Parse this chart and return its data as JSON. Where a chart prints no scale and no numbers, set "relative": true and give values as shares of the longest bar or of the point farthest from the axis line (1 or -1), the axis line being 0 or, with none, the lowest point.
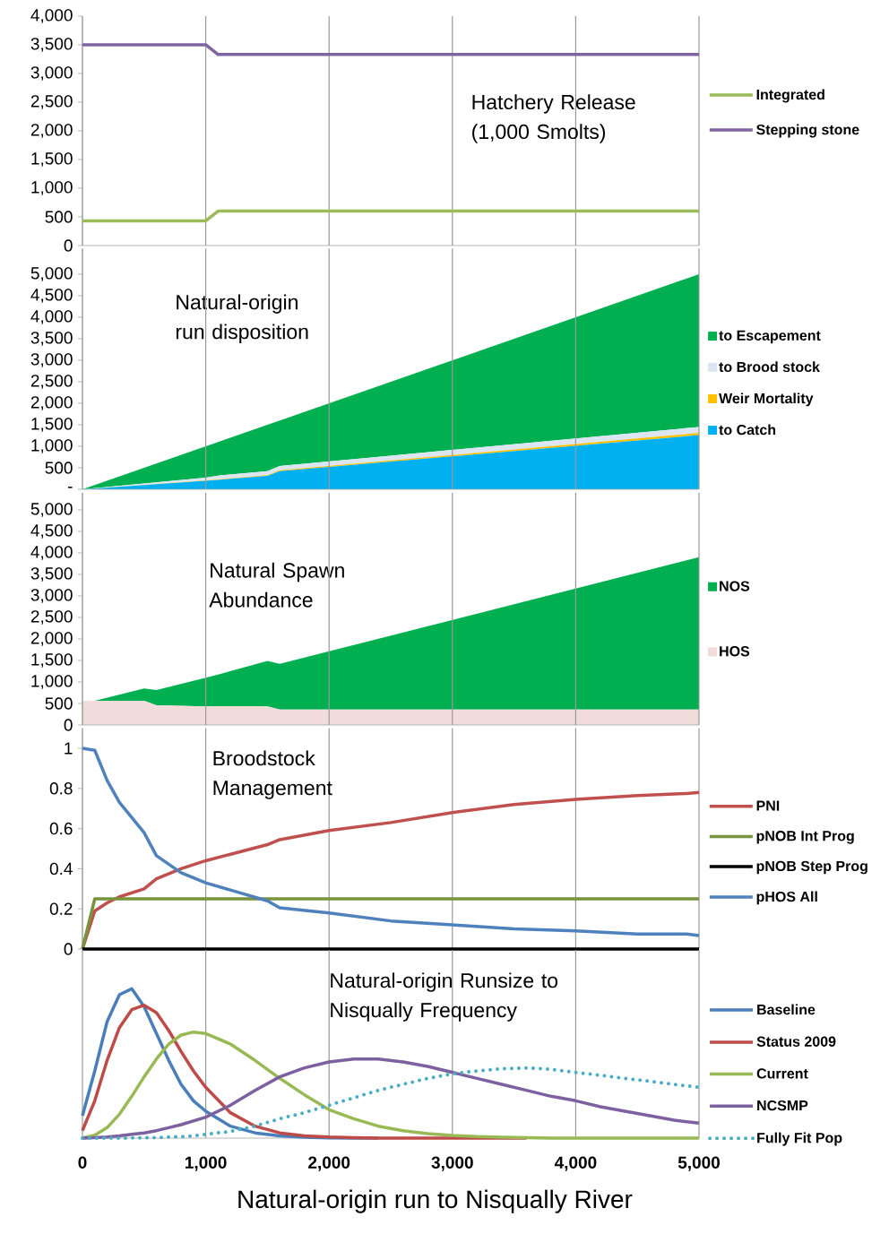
{
  "chart_data": [
    {
      "type": "line",
      "title": "Hatchery Release (1,000 Smolts)",
      "x": [
        0,
        1000,
        1100,
        5000
      ],
      "xlim": [
        0,
        5000
      ],
      "ylim": [
        0,
        4000
      ],
      "xticks": [
        0,
        1000,
        2000,
        3000,
        4000,
        5000
      ],
      "yticks": [
        0,
        500,
        {
          "value": 1000,
          "label": "1,000"
        },
        {
          "value": 1500,
          "label": "1,500"
        },
        {
          "value": 2000,
          "label": "2,000"
        },
        {
          "value": 2500,
          "label": "2,500"
        },
        {
          "value": 3000,
          "label": "3,000"
        },
        {
          "value": 3500,
          "label": "3,500"
        },
        {
          "value": 4000,
          "label": "4,000"
        }
      ],
      "series": [
        {
          "name": "Integrated",
          "color": "#9bbb59",
          "values": [
            430,
            430,
            600,
            600
          ]
        },
        {
          "name": "Stepping stone",
          "color": "#8064a2",
          "values": [
            3500,
            3500,
            3330,
            3330
          ]
        }
      ],
      "grid": "x",
      "legend": "right",
      "tick_labels": "y",
      "marker": "none",
      "line_style": "solid"
    },
    {
      "type": "area",
      "stacked": true,
      "title": "Natural-origin run disposition",
      "x": [
        0,
        1000,
        1100,
        1500,
        1600,
        5000
      ],
      "xlim": [
        0,
        5000
      ],
      "ylim": [
        0,
        5600
      ],
      "xticks": [
        0,
        1000,
        2000,
        3000,
        4000,
        5000
      ],
      "yticks": [
        {
          "value": 0,
          "label": "-"
        },
        500,
        {
          "value": 1000,
          "label": "1,000"
        },
        {
          "value": 1500,
          "label": "1,500"
        },
        {
          "value": 2000,
          "label": "2,000"
        },
        {
          "value": 2500,
          "label": "2,500"
        },
        {
          "value": 3000,
          "label": "3,000"
        },
        {
          "value": 3500,
          "label": "3,500"
        },
        {
          "value": 4000,
          "label": "4,000"
        },
        {
          "value": 4500,
          "label": "4,500"
        },
        {
          "value": 5000,
          "label": "5,000"
        }
      ],
      "series": [
        {
          "name": "to Catch",
          "color": "#00b0f0",
          "values": [
            0,
            200,
            220,
            310,
            420,
            1260
          ]
        },
        {
          "name": "Weir Mortality",
          "color": "#ffc000",
          "values": [
            0,
            10,
            10,
            20,
            20,
            50
          ]
        },
        {
          "name": "to Brood stock",
          "color": "#dce6f2",
          "values": [
            0,
            60,
            90,
            90,
            100,
            140
          ]
        },
        {
          "name": "to Escapement",
          "color": "#00b050",
          "values": [
            0,
            730,
            780,
            1080,
            1060,
            3550
          ]
        }
      ],
      "grid": "x",
      "legend": "right",
      "tick_labels": "y"
    },
    {
      "type": "area",
      "stacked": true,
      "title": "Natural Spawn Abundance",
      "x": [
        0,
        100,
        500,
        600,
        1000,
        1100,
        1500,
        1600,
        5000
      ],
      "xlim": [
        0,
        5000
      ],
      "ylim": [
        0,
        5400
      ],
      "xticks": [
        0,
        1000,
        2000,
        3000,
        4000,
        5000
      ],
      "yticks": [
        0,
        500,
        {
          "value": 1000,
          "label": "1,000"
        },
        {
          "value": 1500,
          "label": "1,500"
        },
        {
          "value": 2000,
          "label": "2,000"
        },
        {
          "value": 2500,
          "label": "2,500"
        },
        {
          "value": 3000,
          "label": "3,000"
        },
        {
          "value": 3500,
          "label": "3,500"
        },
        {
          "value": 4000,
          "label": "4,000"
        },
        {
          "value": 4500,
          "label": "4,500"
        },
        {
          "value": 5000,
          "label": "5,000"
        }
      ],
      "series": [
        {
          "name": "HOS",
          "color": "#f2dcdb",
          "values": [
            560,
            560,
            560,
            460,
            430,
            430,
            430,
            360,
            360
          ]
        },
        {
          "name": "NOS",
          "color": "#00b050",
          "values": [
            0,
            0,
            290,
            350,
            670,
            740,
            1060,
            1060,
            3540
          ]
        }
      ],
      "grid": "x",
      "legend": "right",
      "tick_labels": "y"
    },
    {
      "type": "line",
      "title": "Broodstock Management",
      "x": [
        0,
        100,
        200,
        300,
        500,
        600,
        800,
        1000,
        1500,
        1600,
        2000,
        2500,
        3000,
        3500,
        4000,
        4500,
        4900,
        5000
      ],
      "xlim": [
        0,
        5000
      ],
      "ylim": [
        0,
        1.1
      ],
      "xticks": [
        0,
        1000,
        2000,
        3000,
        4000,
        5000
      ],
      "yticks": [
        0,
        0.2,
        0.4,
        0.6,
        0.8,
        1
      ],
      "series": [
        {
          "name": "PNI",
          "color": "#c0504d",
          "values": [
            0,
            0.19,
            0.23,
            0.26,
            0.3,
            0.35,
            0.4,
            0.44,
            0.52,
            0.545,
            0.59,
            0.63,
            0.68,
            0.72,
            0.745,
            0.765,
            0.775,
            0.78
          ]
        },
        {
          "name": "pNOB Int Prog",
          "color": "#77933c",
          "values": [
            0,
            0.25,
            0.25,
            0.25,
            0.25,
            0.25,
            0.25,
            0.25,
            0.25,
            0.25,
            0.25,
            0.25,
            0.25,
            0.25,
            0.25,
            0.25,
            0.25,
            0.25
          ]
        },
        {
          "name": "pNOB Step Prog",
          "color": "#000000",
          "values": [
            0,
            0,
            0,
            0,
            0,
            0,
            0,
            0,
            0,
            0,
            0,
            0,
            0,
            0,
            0,
            0,
            0,
            0
          ]
        },
        {
          "name": "pHOS All",
          "color": "#4f81bd",
          "values": [
            1.0,
            0.99,
            0.84,
            0.73,
            0.58,
            0.465,
            0.38,
            0.33,
            0.24,
            0.205,
            0.18,
            0.14,
            0.12,
            0.1,
            0.09,
            0.075,
            0.075,
            0.067
          ]
        }
      ],
      "grid": "x",
      "legend": "right",
      "tick_labels": "y",
      "marker": "none",
      "line_style": "solid"
    },
    {
      "type": "line",
      "relative": true,
      "title": "Natural-origin Runsize to Nisqually Frequency",
      "xlabel": "Natural-origin run to Nisqually River",
      "x": [
        0,
        100,
        200,
        300,
        400,
        500,
        600,
        700,
        800,
        900,
        1000,
        1200,
        1400,
        1600,
        1800,
        2000,
        2200,
        2400,
        2600,
        2800,
        3000,
        3200,
        3400,
        3600,
        3800,
        4000,
        4200,
        4400,
        4600,
        4800,
        5000
      ],
      "xlim": [
        0,
        5000
      ],
      "xticks": [
        {
          "value": 0,
          "label": "0"
        },
        {
          "value": 1000,
          "label": "1,000"
        },
        {
          "value": 2000,
          "label": "2,000"
        },
        {
          "value": 3000,
          "label": "3,000"
        },
        {
          "value": 4000,
          "label": "4,000"
        },
        {
          "value": 5000,
          "label": "5,000"
        }
      ],
      "series": [
        {
          "name": "Baseline",
          "color": "#4a7ebb",
          "values": [
            0.15,
            0.45,
            0.78,
            0.96,
            1.0,
            0.88,
            0.7,
            0.52,
            0.36,
            0.25,
            0.18,
            0.08,
            0.035,
            0.015,
            0.006,
            0.002,
            0,
            0,
            null,
            null,
            null,
            null,
            null,
            null,
            null,
            null,
            null,
            null,
            null,
            null,
            null
          ]
        },
        {
          "name": "Status 2009",
          "color": "#be4b48",
          "values": [
            0.05,
            0.25,
            0.52,
            0.74,
            0.86,
            0.89,
            0.84,
            0.72,
            0.58,
            0.45,
            0.34,
            0.17,
            0.08,
            0.035,
            0.015,
            0.007,
            0.003,
            0,
            0,
            0,
            0,
            0,
            0,
            0,
            null,
            null,
            null,
            null,
            null,
            null,
            null
          ]
        },
        {
          "name": "Current",
          "color": "#98b954",
          "values": [
            0,
            0.02,
            0.07,
            0.16,
            0.28,
            0.41,
            0.53,
            0.63,
            0.69,
            0.71,
            0.7,
            0.63,
            0.52,
            0.4,
            0.29,
            0.19,
            0.13,
            0.08,
            0.05,
            0.03,
            0.018,
            0.01,
            0.006,
            0.003,
            0,
            0,
            0,
            0,
            0,
            0,
            0
          ]
        },
        {
          "name": "NCSMP",
          "color": "#7d60a0",
          "values": [
            0,
            0.003,
            0.008,
            0.015,
            0.025,
            0.035,
            0.05,
            0.07,
            0.09,
            0.115,
            0.14,
            0.22,
            0.32,
            0.41,
            0.47,
            0.51,
            0.53,
            0.53,
            0.51,
            0.48,
            0.44,
            0.4,
            0.36,
            0.32,
            0.28,
            0.25,
            0.21,
            0.18,
            0.15,
            0.12,
            0.1
          ]
        },
        {
          "name": "Fully Fit Pop",
          "color": "#4bacc6",
          "line_style": "dotted",
          "values": [
            0,
            0,
            0,
            0,
            0.001,
            0.002,
            0.004,
            0.007,
            0.01,
            0.015,
            0.025,
            0.045,
            0.08,
            0.13,
            0.17,
            0.22,
            0.27,
            0.32,
            0.36,
            0.4,
            0.43,
            0.45,
            0.465,
            0.47,
            0.46,
            0.44,
            0.42,
            0.4,
            0.38,
            0.36,
            0.34
          ]
        }
      ],
      "grid": "x",
      "legend": "right",
      "tick_labels": "x",
      "marker": "none",
      "line_style": "solid"
    }
  ]
}
